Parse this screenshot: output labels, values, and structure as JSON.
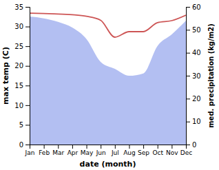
{
  "chart_data": {
    "type": "line",
    "x_label": "date (month)",
    "y_label": "max temp (C)",
    "y2_label": "med. precipitation (kg/m2)",
    "categories": [
      "Jan",
      "Feb",
      "Mar",
      "Apr",
      "May",
      "Jun",
      "Jul",
      "Aug",
      "Sep",
      "Oct",
      "Nov",
      "Dec"
    ],
    "series": [
      {
        "type": "area",
        "axis": "y2",
        "color": "#b3bff2",
        "values": [
          55.8,
          55,
          53.5,
          51,
          46,
          36,
          33,
          30,
          31,
          43,
          48,
          54
        ]
      },
      {
        "type": "line",
        "color": "#cd5555",
        "values": [
          33.4,
          33.3,
          33.2,
          33.0,
          32.6,
          31.6,
          27.3,
          28.7,
          28.7,
          31.0,
          31.5,
          32.9
        ]
      }
    ],
    "ylim": [
      0,
      35
    ],
    "yticks": [
      0,
      5,
      10,
      15,
      20,
      25,
      30,
      35
    ],
    "y2lim": [
      0,
      60
    ],
    "y2ticks": [
      0,
      10,
      20,
      30,
      40,
      50,
      60
    ],
    "grid": false
  }
}
